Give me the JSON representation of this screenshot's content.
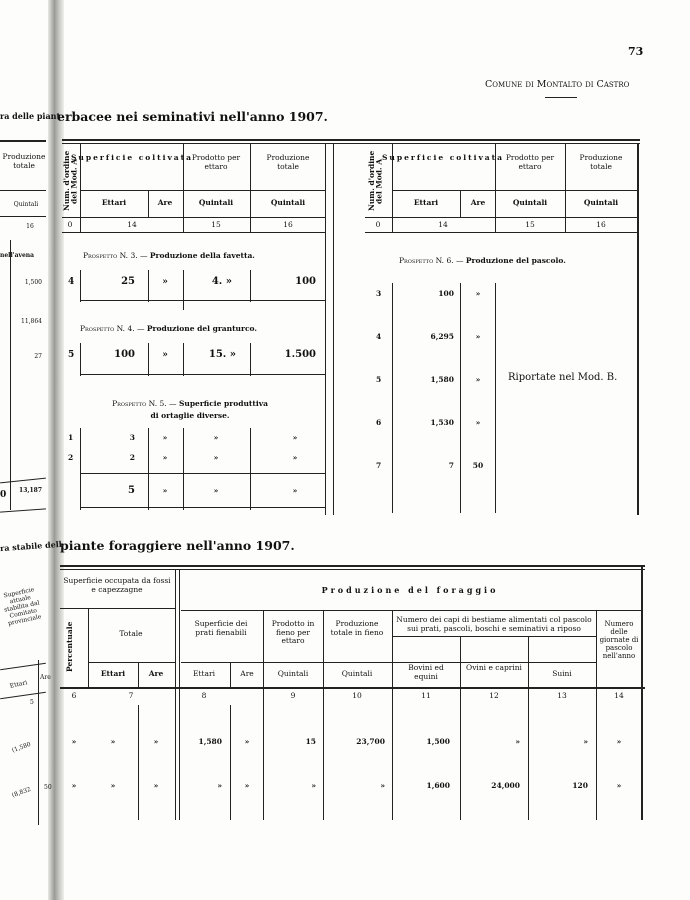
{
  "page_number": "73",
  "running_header": "Comune di Montalto di Castro",
  "top": {
    "left_fragment_title": "ra delle piant",
    "title": "erbacee nei seminativi nell'anno 1907.",
    "left_fragment": {
      "col_header": "Produzione totale",
      "unit": "Quintali",
      "col_number": "16",
      "section": "nell'avena",
      "values": [
        "1,500",
        "11,864",
        "27",
        "13,187"
      ],
      "edge_value": "0"
    },
    "headers": {
      "num": "Num. d'ordine del Mod. A",
      "superficie": "Superficie coltivata",
      "prodotto": "Prodotto per ettaro",
      "produzione": "Produzione totale",
      "ettari": "Ettari",
      "are": "Are",
      "quintali": "Quintali"
    },
    "left_table": {
      "col_numbers": [
        "0",
        "14",
        "15",
        "16"
      ],
      "p3": {
        "title": "Prospetto N. 3. — ",
        "subject": "Produzione della favetta.",
        "row": [
          "4",
          "25",
          "»",
          "4. »",
          "100"
        ]
      },
      "p4": {
        "title": "Prospetto N. 4. — ",
        "subject": "Produzione del granturco.",
        "row": [
          "5",
          "100",
          "»",
          "15. »",
          "1.500"
        ]
      },
      "p5": {
        "title": "Prospetto N. 5. — ",
        "subject": "Superficie produttiva",
        "subject2": "di ortaglie diverse.",
        "rows": [
          [
            "1",
            "3",
            "»",
            "»",
            "»"
          ],
          [
            "2",
            "2",
            "»",
            "»",
            "»"
          ]
        ],
        "total": [
          "5",
          "»",
          "»",
          "»"
        ]
      }
    },
    "right_table": {
      "col_numbers": [
        "0",
        "14",
        "15",
        "16"
      ],
      "p6": {
        "title": "Prospetto N. 6. — ",
        "subject": "Produzione del pascolo.",
        "rows": [
          [
            "3",
            "100",
            "»"
          ],
          [
            "4",
            "6,295",
            "»"
          ],
          [
            "5",
            "1,580",
            "»"
          ],
          [
            "6",
            "1,530",
            "»"
          ],
          [
            "7",
            "7",
            "50"
          ]
        ],
        "note": "Riportate nel Mod. B."
      }
    }
  },
  "bottom": {
    "left_fragment_title": "ra stabile dell",
    "title": "piante foraggiere nell'anno 1907.",
    "left_fragment": {
      "col_header": "Superficie attuale stabilita dal Comitato provinciale",
      "ettari": "Ettari",
      "are": "Are",
      "col_number": "5",
      "values": [
        "(1,580",
        "(8,832"
      ],
      "are_value": "50"
    },
    "headers": {
      "occupata": "Superficie occupata da fossi e capezzagne",
      "percentuale": "Percentuale",
      "totale": "Totale",
      "ettari": "Ettari",
      "are": "Are",
      "produzione_foraggio": "Produzione del foraggio",
      "sup_prati": "Superficie dei prati fienabili",
      "prodotto_fieno": "Prodotto in fieno per ettaro",
      "produzione_fieno": "Produzione totale in fieno",
      "quintali": "Quintali",
      "numero_capi": "Numero dei capi di bestiame alimentati col pascolo sui prati, pascoli, boschi e seminativi a riposo",
      "bovini": "Bovini ed equini",
      "ovini": "Ovini e caprini",
      "suini": "Suini",
      "giornate": "Numero delle giornate di pascolo nell'anno"
    },
    "col_numbers": [
      "6",
      "7",
      "8",
      "9",
      "10",
      "11",
      "12",
      "13",
      "14"
    ],
    "rows": [
      [
        "»",
        "»",
        "»",
        "1,580",
        "»",
        "15",
        "23,700",
        "1,500",
        "»",
        "»",
        "»"
      ],
      [
        "»",
        "»",
        "»",
        "»",
        "»",
        "»",
        "»",
        "1,600",
        "24,000",
        "120",
        "»"
      ]
    ]
  }
}
